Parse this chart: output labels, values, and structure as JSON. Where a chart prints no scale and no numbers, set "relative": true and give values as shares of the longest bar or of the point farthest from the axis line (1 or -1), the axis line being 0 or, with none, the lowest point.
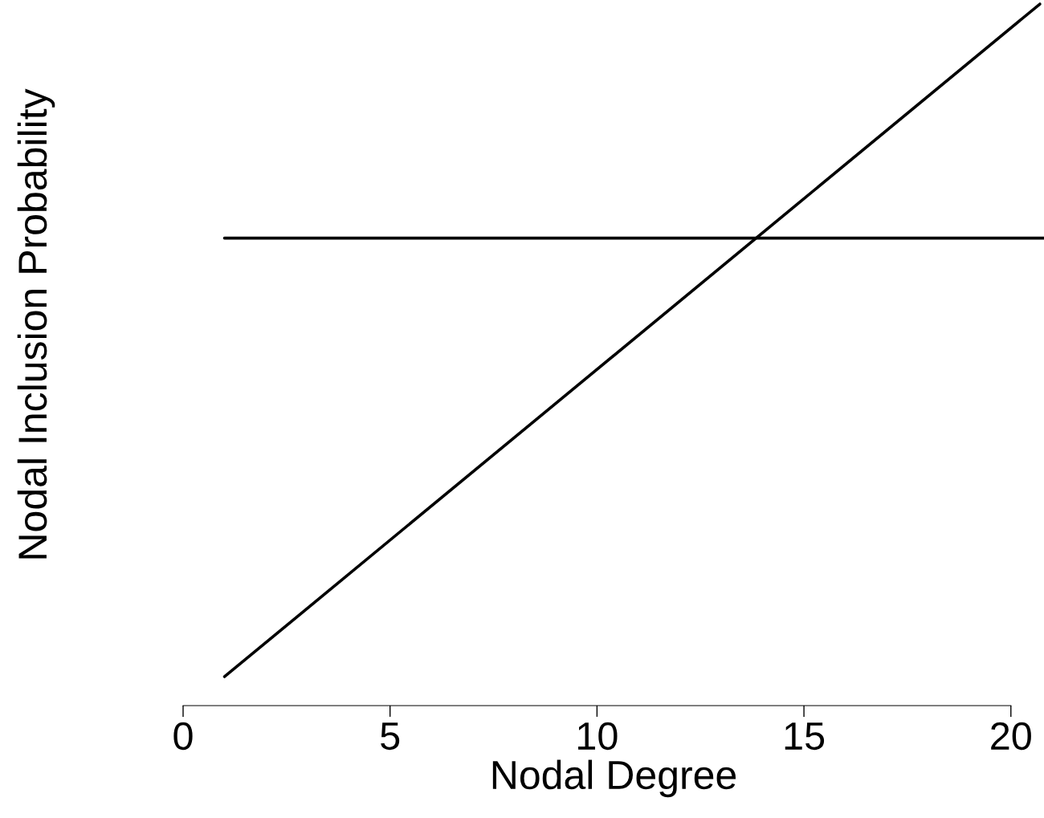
{
  "chart_data": {
    "type": "line",
    "xlabel": "Nodal Degree",
    "ylabel": "Nodal Inclusion Probability",
    "relative": true,
    "xlim": [
      0,
      20.8
    ],
    "xticks": [
      0,
      5,
      10,
      15,
      20
    ],
    "grid": false,
    "legend": false,
    "marker": "none",
    "line_style": "solid",
    "series": [
      {
        "color": "#000000",
        "x": [
          1,
          20.8
        ],
        "values": [
          0.652,
          0.652
        ]
      },
      {
        "color": "#000000",
        "x": [
          1,
          20.7
        ],
        "values": [
          0,
          1
        ]
      }
    ]
  }
}
